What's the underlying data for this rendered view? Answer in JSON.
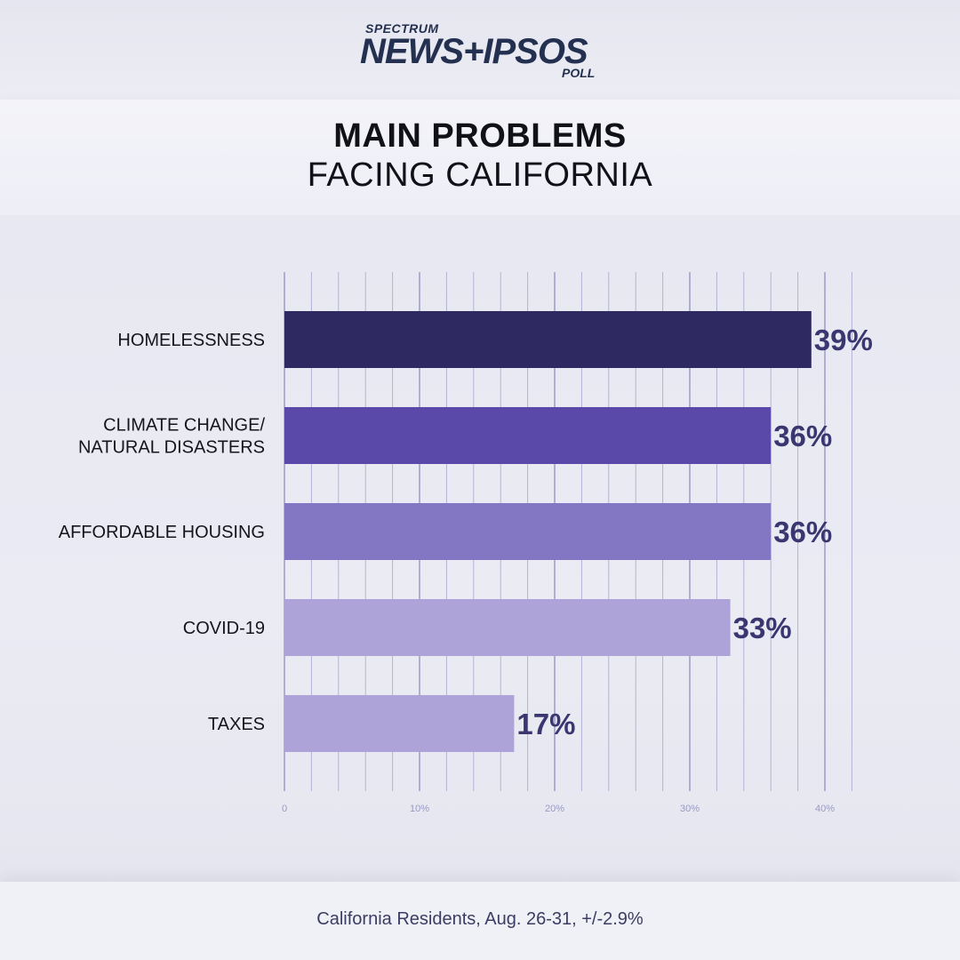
{
  "header": {
    "brand_small": "SPECTRUM",
    "brand_main": "NEWS+IPSOS",
    "brand_poll": "POLL",
    "title_line1": "MAIN PROBLEMS",
    "title_line2": "FACING CALIFORNIA"
  },
  "footer": {
    "note": "California Residents, Aug. 26-31, +/-2.9%"
  },
  "chart_data": {
    "type": "bar",
    "orientation": "horizontal",
    "title": "MAIN PROBLEMS FACING CALIFORNIA",
    "categories": [
      [
        "HOMELESSNESS"
      ],
      [
        "CLIMATE CHANGE/",
        "NATURAL DISASTERS"
      ],
      [
        "AFFORDABLE HOUSING"
      ],
      [
        "COVID-19"
      ],
      [
        "TAXES"
      ]
    ],
    "values": [
      39,
      36,
      36,
      33,
      17
    ],
    "value_labels": [
      "39%",
      "36%",
      "36%",
      "33%",
      "17%"
    ],
    "bar_colors": [
      "#2e2a61",
      "#5a49a8",
      "#8377c3",
      "#ada3d9",
      "#ada3d9"
    ],
    "xlim": [
      0,
      42
    ],
    "x_ticks": [
      0,
      10,
      20,
      30,
      40
    ],
    "x_tick_labels": [
      "0",
      "10%",
      "20%",
      "30%",
      "40%"
    ],
    "grid": true,
    "grid_step": 2,
    "label_color": "#3a3670",
    "grid_color": "#b4b3d6",
    "grid_major_color": "#8a88bd"
  }
}
